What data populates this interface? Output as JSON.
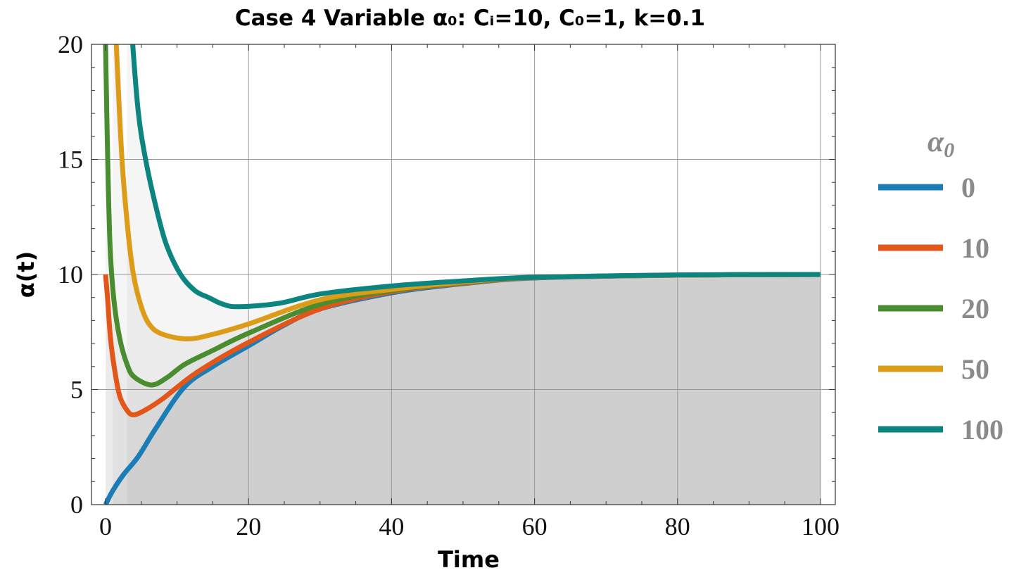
{
  "chart_data": {
    "type": "line",
    "title": "Case 4 Variable α₀: Cᵢ=10, C₀=1, k=0.1",
    "xlabel": "Time",
    "ylabel": "α(t)",
    "xlim": [
      0,
      100
    ],
    "ylim": [
      0,
      20
    ],
    "xticks": [
      0,
      20,
      40,
      60,
      80,
      100
    ],
    "yticks": [
      0,
      5,
      10,
      15,
      20
    ],
    "grid": true,
    "filling": "to axis",
    "legend": {
      "title": "α",
      "title_subscript": "0",
      "placement": "right"
    },
    "series": [
      {
        "name": "0",
        "color": "#1a7db5",
        "points": [
          [
            0,
            0
          ],
          [
            1,
            0.6
          ],
          [
            2.5,
            1.3
          ],
          [
            4.6,
            2.1
          ],
          [
            7,
            3.3
          ],
          [
            11,
            5.1
          ],
          [
            15,
            6.0
          ],
          [
            20,
            6.9
          ],
          [
            25,
            7.8
          ],
          [
            30,
            8.5
          ],
          [
            40,
            9.2
          ],
          [
            50,
            9.6
          ],
          [
            60,
            9.85
          ],
          [
            80,
            9.97
          ],
          [
            100,
            10
          ]
        ]
      },
      {
        "name": "10",
        "color": "#e3561a",
        "points": [
          [
            0,
            10
          ],
          [
            0.3,
            8.9
          ],
          [
            0.7,
            7.2
          ],
          [
            1.3,
            5.8
          ],
          [
            2,
            4.7
          ],
          [
            3,
            4.1
          ],
          [
            3.9,
            3.9
          ],
          [
            5.5,
            4.1
          ],
          [
            8,
            4.6
          ],
          [
            12.8,
            5.75
          ],
          [
            20,
            7.05
          ],
          [
            30,
            8.5
          ],
          [
            40,
            9.25
          ],
          [
            50,
            9.62
          ],
          [
            60,
            9.86
          ],
          [
            80,
            9.97
          ],
          [
            100,
            10
          ]
        ]
      },
      {
        "name": "20",
        "color": "#4a8c30",
        "points": [
          [
            0,
            20
          ],
          [
            0.3,
            15
          ],
          [
            0.65,
            11.1
          ],
          [
            1.2,
            8.8
          ],
          [
            2,
            7.2
          ],
          [
            3,
            6.1
          ],
          [
            4,
            5.55
          ],
          [
            6.4,
            5.2
          ],
          [
            8.5,
            5.5
          ],
          [
            11.1,
            6.1
          ],
          [
            15,
            6.7
          ],
          [
            20,
            7.45
          ],
          [
            30,
            8.7
          ],
          [
            40,
            9.3
          ],
          [
            50,
            9.65
          ],
          [
            60,
            9.87
          ],
          [
            80,
            9.97
          ],
          [
            100,
            10
          ]
        ]
      },
      {
        "name": "50",
        "color": "#dd9c18",
        "points": [
          [
            1.0,
            24
          ],
          [
            1.5,
            20
          ],
          [
            2.3,
            15
          ],
          [
            3.1,
            12
          ],
          [
            3.9,
            10
          ],
          [
            5,
            8.6
          ],
          [
            6.2,
            7.8
          ],
          [
            8,
            7.4
          ],
          [
            11.5,
            7.2
          ],
          [
            15,
            7.4
          ],
          [
            20,
            7.85
          ],
          [
            30,
            8.9
          ],
          [
            40,
            9.35
          ],
          [
            50,
            9.67
          ],
          [
            60,
            9.88
          ],
          [
            80,
            9.97
          ],
          [
            100,
            10
          ]
        ]
      },
      {
        "name": "100",
        "color": "#0c8580",
        "points": [
          [
            3.0,
            24
          ],
          [
            3.8,
            20
          ],
          [
            4.6,
            17
          ],
          [
            5.6,
            15
          ],
          [
            7,
            13
          ],
          [
            8.5,
            11.3
          ],
          [
            10.5,
            10
          ],
          [
            12.5,
            9.3
          ],
          [
            14.4,
            9.0
          ],
          [
            16.5,
            8.7
          ],
          [
            18.7,
            8.6
          ],
          [
            24.3,
            8.75
          ],
          [
            30,
            9.15
          ],
          [
            40,
            9.5
          ],
          [
            50,
            9.72
          ],
          [
            60,
            9.88
          ],
          [
            80,
            9.98
          ],
          [
            100,
            10
          ]
        ]
      }
    ]
  }
}
